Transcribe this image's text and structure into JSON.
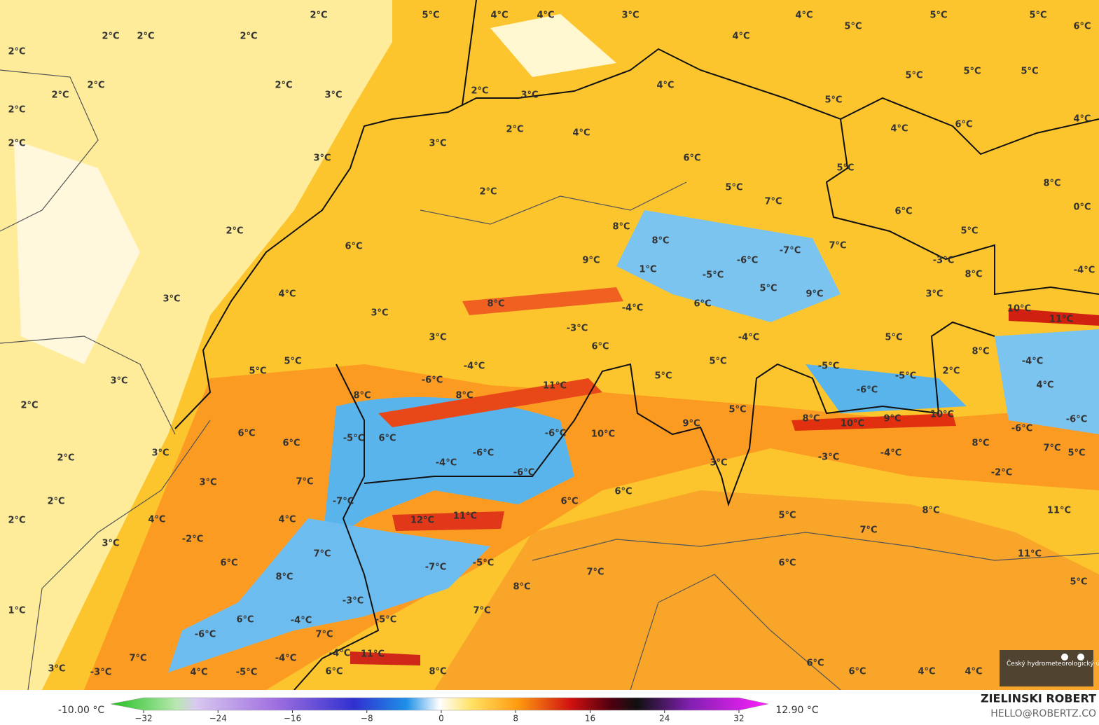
{
  "map": {
    "labels": [
      "2°C",
      "5°C",
      "4°C",
      "4°C",
      "3°C",
      "4°C",
      "5°C",
      "5°C",
      "6°C",
      "5°C",
      "4°C",
      "2°C",
      "2°C",
      "2°C",
      "2°C",
      "2°C",
      "2°C",
      "2°C",
      "3°C",
      "2°C",
      "3°C",
      "4°C",
      "5°C",
      "5°C",
      "5°C",
      "5°C",
      "2°C",
      "2°C",
      "2°C",
      "4°C",
      "3°C",
      "4°C",
      "6°C",
      "4°C",
      "3°C",
      "5°C",
      "6°C",
      "5°C",
      "2°C",
      "8°C",
      "7°C",
      "6°C",
      "0°C",
      "2°C",
      "8°C",
      "5°C",
      "8°C",
      "6°C",
      "7°C",
      "-7°C",
      "9°C",
      "-6°C",
      "-3°C",
      "1°C",
      "-5°C",
      "8°C",
      "-4°C",
      "5°C",
      "9°C",
      "3°C",
      "4°C",
      "3°C",
      "8°C",
      "-4°C",
      "6°C",
      "10°C",
      "3°C",
      "11°C",
      "-3°C",
      "-4°C",
      "3°C",
      "5°C",
      "6°C",
      "8°C",
      "5°C",
      "5°C",
      "-4°C",
      "5°C",
      "-5°C",
      "-4°C",
      "2°C",
      "5°C",
      "-6°C",
      "11°C",
      "-5°C",
      "3°C",
      "4°C",
      "8°C",
      "8°C",
      "-6°C",
      "2°C",
      "5°C",
      "8°C",
      "10°C",
      "9°C",
      "10°C",
      "9°C",
      "-6°C",
      "-6°C",
      "6°C",
      "-6°C",
      "10°C",
      "-5°C",
      "6°C",
      "6°C",
      "8°C",
      "7°C",
      "3°C",
      "-6°C",
      "-3°C",
      "-4°C",
      "5°C",
      "2°C",
      "-4°C",
      "3°C",
      "7°C",
      "3°C",
      "-2°C",
      "-6°C",
      "6°C",
      "2°C",
      "-7°C",
      "6°C",
      "8°C",
      "11°C",
      "5°C",
      "12°C",
      "11°C",
      "4°C",
      "4°C",
      "2°C",
      "7°C",
      "-2°C",
      "3°C",
      "7°C",
      "11°C",
      "6°C",
      "6°C",
      "-5°C",
      "-7°C",
      "7°C",
      "8°C",
      "5°C",
      "8°C",
      "-3°C",
      "7°C",
      "1°C",
      "-5°C",
      "-4°C",
      "6°C",
      "7°C",
      "-6°C",
      "7°C",
      "-4°C",
      "-4°C",
      "11°C",
      "6°C",
      "3°C",
      "-3°C",
      "4°C",
      "-5°C",
      "6°C",
      "8°C",
      "6°C",
      "4°C",
      "4°C"
    ],
    "logo": "Český hydrometeorologický ústav"
  },
  "colorbar": {
    "min_label": "-10.00 °C",
    "max_label": "12.90 °C",
    "ticks": [
      {
        "value": -32,
        "label": "−32"
      },
      {
        "value": -24,
        "label": "−24"
      },
      {
        "value": -16,
        "label": "−16"
      },
      {
        "value": -8,
        "label": "−8"
      },
      0,
      8,
      16,
      24,
      32
    ],
    "range": [
      -32,
      32
    ]
  },
  "credit": {
    "name": "ZIELINSKI ROBERT",
    "contact": "HELLO@ROBERTZ.CO"
  }
}
